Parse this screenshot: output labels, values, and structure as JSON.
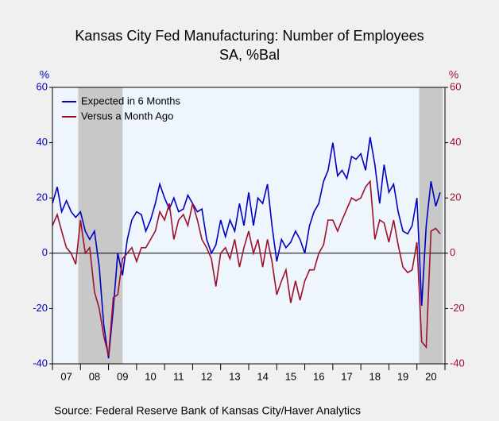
{
  "chart_data": {
    "type": "line",
    "title": "Kansas City Fed Manufacturing: Number of Employees",
    "subtitle": "SA, %Bal",
    "y_unit_left": "%",
    "y_unit_right": "%",
    "source": "Source:  Federal Reserve Bank of Kansas City/Haver Analytics",
    "xlim": [
      2007,
      2021
    ],
    "xticks": [
      2007,
      2008,
      2009,
      2010,
      2011,
      2012,
      2013,
      2014,
      2015,
      2016,
      2017,
      2018,
      2019,
      2020,
      2021
    ],
    "year_labels": [
      "07",
      "08",
      "09",
      "10",
      "11",
      "12",
      "13",
      "14",
      "15",
      "16",
      "17",
      "18",
      "19",
      "20"
    ],
    "ylim": [
      -40,
      60
    ],
    "yticks": [
      -40,
      -20,
      0,
      20,
      40,
      60
    ],
    "y2lim": [
      -40,
      60
    ],
    "y2ticks": [
      -40,
      -20,
      0,
      20,
      40,
      60
    ],
    "recessions": [
      [
        2007.92,
        2009.5
      ],
      [
        2020.08,
        2020.92
      ]
    ],
    "recession_color": "#c8c8c8",
    "legend": "upper left",
    "x": [
      2007,
      2007.17,
      2007.33,
      2007.5,
      2007.67,
      2007.83,
      2008,
      2008.17,
      2008.33,
      2008.5,
      2008.67,
      2008.83,
      2009,
      2009.17,
      2009.33,
      2009.5,
      2009.67,
      2009.83,
      2010,
      2010.17,
      2010.33,
      2010.5,
      2010.67,
      2010.83,
      2011,
      2011.17,
      2011.33,
      2011.5,
      2011.67,
      2011.83,
      2012,
      2012.17,
      2012.33,
      2012.5,
      2012.67,
      2012.83,
      2013,
      2013.17,
      2013.33,
      2013.5,
      2013.67,
      2013.83,
      2014,
      2014.17,
      2014.33,
      2014.5,
      2014.67,
      2014.83,
      2015,
      2015.17,
      2015.33,
      2015.5,
      2015.67,
      2015.83,
      2016,
      2016.17,
      2016.33,
      2016.5,
      2016.67,
      2016.83,
      2017,
      2017.17,
      2017.33,
      2017.5,
      2017.67,
      2017.83,
      2018,
      2018.17,
      2018.33,
      2018.5,
      2018.67,
      2018.83,
      2019,
      2019.17,
      2019.33,
      2019.5,
      2019.67,
      2019.83,
      2020,
      2020.17,
      2020.33,
      2020.5,
      2020.67,
      2020.83
    ],
    "series": [
      {
        "name": "Expected in 6 Months",
        "color": "#0000c0",
        "values": [
          18,
          24,
          15,
          19,
          15,
          13,
          15,
          8,
          5,
          8,
          -5,
          -26,
          -38,
          -20,
          0,
          -8,
          5,
          12,
          15,
          14,
          8,
          12,
          18,
          25,
          20,
          16,
          20,
          15,
          16,
          21,
          18,
          15,
          16,
          5,
          0,
          3,
          12,
          6,
          12,
          8,
          18,
          10,
          22,
          10,
          20,
          18,
          25,
          10,
          -3,
          5,
          2,
          4,
          8,
          5,
          0,
          10,
          15,
          18,
          26,
          30,
          40,
          28,
          30,
          27,
          35,
          34,
          36,
          30,
          42,
          32,
          18,
          32,
          22,
          25,
          15,
          8,
          7,
          10,
          20,
          -19,
          10,
          26,
          17,
          22
        ]
      },
      {
        "name": "Versus a Month Ago",
        "color": "#a0102a",
        "values": [
          10,
          14,
          8,
          2,
          0,
          -4,
          12,
          0,
          2,
          -14,
          -20,
          -30,
          -37,
          -16,
          -15,
          -2,
          0,
          2,
          -3,
          2,
          2,
          5,
          8,
          15,
          12,
          18,
          5,
          12,
          14,
          10,
          18,
          12,
          5,
          2,
          -2,
          -12,
          0,
          2,
          -2,
          5,
          -5,
          2,
          8,
          0,
          5,
          -5,
          5,
          -3,
          -15,
          -10,
          -6,
          -18,
          -10,
          -17,
          -10,
          -6,
          -6,
          0,
          3,
          12,
          12,
          8,
          12,
          16,
          20,
          19,
          20,
          24,
          26,
          5,
          12,
          11,
          4,
          12,
          3,
          -5,
          -7,
          -6,
          4,
          -32,
          -34,
          8,
          9,
          7
        ]
      }
    ]
  }
}
